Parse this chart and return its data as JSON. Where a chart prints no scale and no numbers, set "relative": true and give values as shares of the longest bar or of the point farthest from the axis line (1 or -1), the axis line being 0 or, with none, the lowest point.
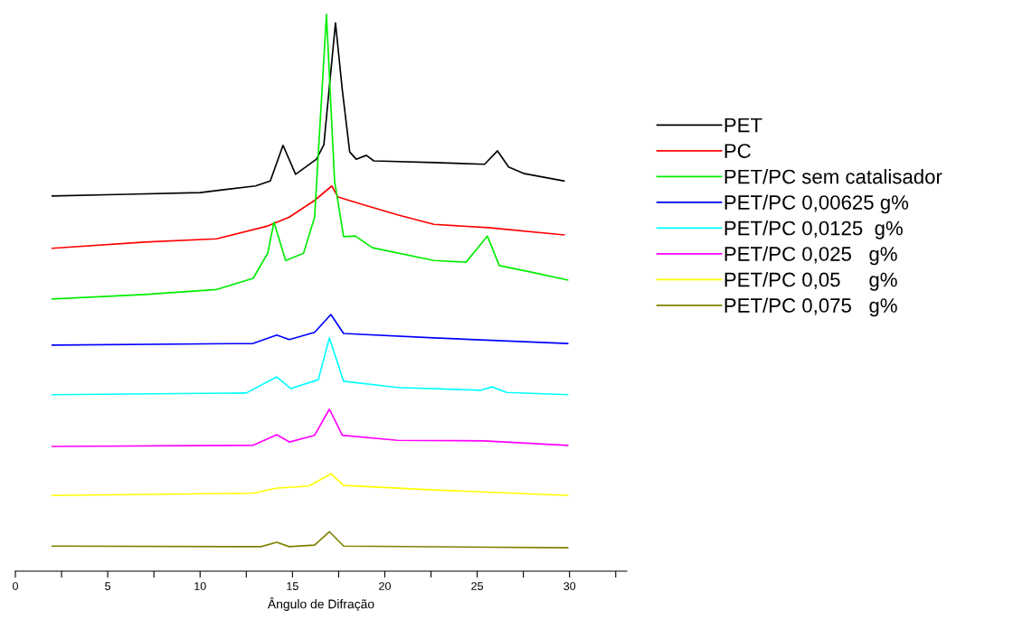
{
  "chart_data": {
    "type": "line",
    "xlabel": "Ângulo de Difração",
    "relative": true,
    "grid": false,
    "legend": "right",
    "marker": "none",
    "line_style": "solid",
    "tick_labels": "x",
    "xlim": [
      0,
      33.1
    ],
    "xticks": [
      0,
      {
        "value": 2.5,
        "label": null
      },
      5,
      {
        "value": 7.5,
        "label": null
      },
      10,
      {
        "value": 12.5,
        "label": null
      },
      15,
      {
        "value": 17.5,
        "label": null
      },
      20,
      {
        "value": 22.5,
        "label": null
      },
      25,
      {
        "value": 27.5,
        "label": null
      },
      30,
      {
        "value": 32.5,
        "label": null
      }
    ],
    "series": [
      {
        "name": "PET",
        "color": "#000000",
        "x": [
          2,
          6,
          10,
          13,
          13.8,
          14.49,
          15.17,
          16.3,
          16.7,
          17.33,
          17.7,
          18.1,
          18.45,
          19.0,
          19.4,
          22.66,
          25.4,
          26.1,
          26.7,
          27.56,
          29.7
        ],
        "values": [
          0.674,
          0.677,
          0.68,
          0.692,
          0.701,
          0.765,
          0.713,
          0.74,
          0.766,
          0.985,
          0.864,
          0.753,
          0.74,
          0.747,
          0.737,
          0.734,
          0.731,
          0.755,
          0.726,
          0.714,
          0.701
        ]
      },
      {
        "name": "PC",
        "color": "#ff0000",
        "x": [
          2,
          7.0,
          10.9,
          13.66,
          14.83,
          16.2,
          17.13,
          17.47,
          18.75,
          20.7,
          22.66,
          25.6,
          29.7
        ],
        "values": [
          0.58,
          0.591,
          0.597,
          0.62,
          0.636,
          0.666,
          0.692,
          0.672,
          0.659,
          0.64,
          0.623,
          0.617,
          0.604
        ]
      },
      {
        "name": "PET/PC sem catalisador",
        "color": "#00ee00",
        "x": [
          2,
          7.0,
          10.9,
          12.87,
          13.66,
          14.0,
          14.63,
          15.6,
          16.2,
          16.84,
          17.28,
          17.77,
          18.4,
          19.33,
          22.66,
          24.4,
          25.55,
          26.2,
          28.1,
          29.9
        ],
        "values": [
          0.489,
          0.497,
          0.506,
          0.526,
          0.571,
          0.627,
          0.558,
          0.571,
          0.636,
          1.0,
          0.701,
          0.601,
          0.602,
          0.581,
          0.558,
          0.555,
          0.602,
          0.549,
          0.536,
          0.523
        ]
      },
      {
        "name": "PET/PC 0,00625 g%",
        "color": "#0000ff",
        "x": [
          2,
          12.87,
          14.15,
          14.83,
          16.2,
          17.08,
          17.77,
          22.66,
          29.9
        ],
        "values": [
          0.406,
          0.409,
          0.424,
          0.416,
          0.429,
          0.461,
          0.427,
          0.419,
          0.409
        ]
      },
      {
        "name": "PET/PC 0,0125  g%",
        "color": "#00ffff",
        "x": [
          2,
          12.5,
          14.15,
          14.9,
          16.4,
          17.0,
          17.77,
          20.7,
          25.2,
          25.8,
          26.6,
          29.9
        ],
        "values": [
          0.317,
          0.32,
          0.349,
          0.328,
          0.344,
          0.419,
          0.341,
          0.33,
          0.325,
          0.331,
          0.321,
          0.317
        ]
      },
      {
        "name": "PET/PC 0,025   g%",
        "color": "#ff00ff",
        "x": [
          2,
          12.87,
          14.15,
          14.83,
          16.2,
          17.0,
          17.7,
          20.7,
          25.4,
          29.9
        ],
        "values": [
          0.224,
          0.226,
          0.245,
          0.232,
          0.244,
          0.291,
          0.244,
          0.235,
          0.234,
          0.226
        ]
      },
      {
        "name": "PET/PC 0,05     g%",
        "color": "#ffff00",
        "x": [
          2,
          12.87,
          14.1,
          15.9,
          17.08,
          17.77,
          22.66,
          29.9
        ],
        "values": [
          0.136,
          0.14,
          0.149,
          0.153,
          0.175,
          0.154,
          0.146,
          0.136
        ]
      },
      {
        "name": "PET/PC 0,075   g%",
        "color": "#808000",
        "x": [
          2,
          13.3,
          14.15,
          14.83,
          16.2,
          17.0,
          17.77,
          29.9
        ],
        "values": [
          0.045,
          0.044,
          0.052,
          0.044,
          0.047,
          0.071,
          0.045,
          0.042
        ]
      }
    ]
  }
}
